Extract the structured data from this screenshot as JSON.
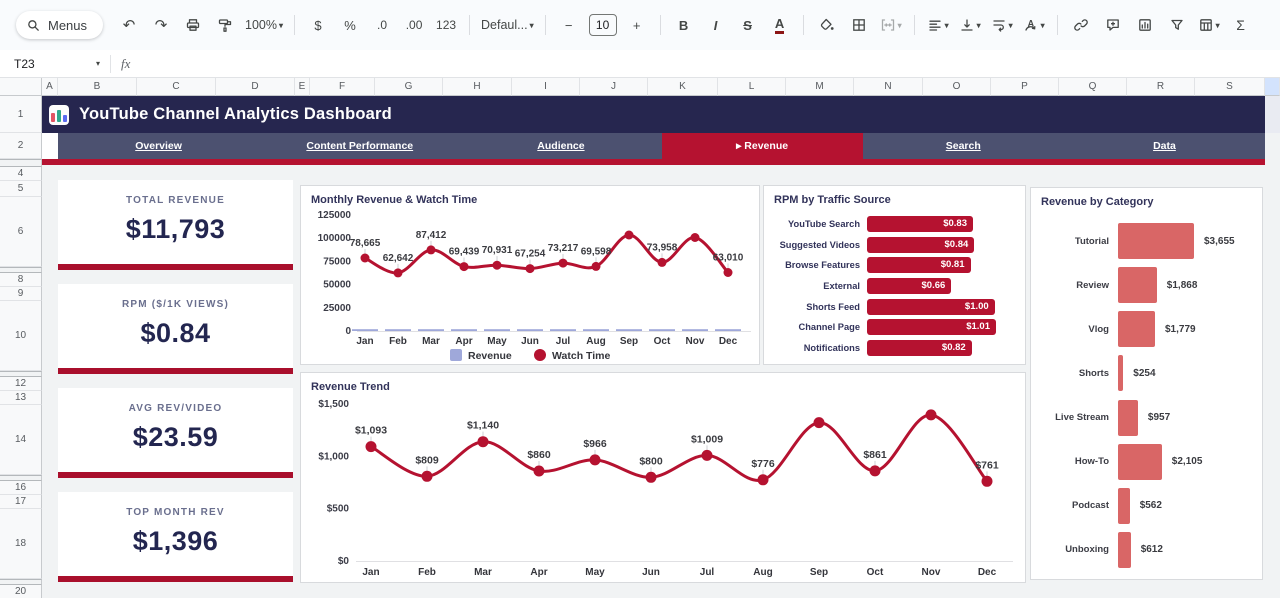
{
  "toolbar": {
    "menus_label": "Menus",
    "zoom_value": "100%",
    "currency": "$",
    "percent": "%",
    "decrease_decimals": ".0",
    "increase_decimals": ".00",
    "more_formats": "123",
    "font_value": "Defaul...",
    "font_size": "10",
    "decrease_size": "−",
    "increase_size": "+",
    "bold": "B",
    "italic": "I",
    "strikethrough": "S",
    "text_color": "A",
    "sum": "Σ",
    "icons": {
      "undo": "↶",
      "redo": "↷",
      "caret": "▾"
    }
  },
  "formula_bar": {
    "name_box": "T23",
    "fx": "fx"
  },
  "spreadsheet": {
    "columns": [
      "A",
      "B",
      "C",
      "D",
      "E",
      "F",
      "G",
      "H",
      "I",
      "J",
      "K",
      "L",
      "M",
      "N",
      "O",
      "P",
      "Q",
      "R",
      "S"
    ],
    "rows": [
      "1",
      "2",
      "4",
      "5",
      "6",
      "8",
      "9",
      "10",
      "12",
      "13",
      "14",
      "16",
      "17",
      "18",
      "20"
    ]
  },
  "header": {
    "title": "YouTube Channel Analytics Dashboard"
  },
  "nav": {
    "active_prefix": "▸",
    "tabs": [
      {
        "label": "Overview",
        "active": false
      },
      {
        "label": "Content Performance",
        "active": false
      },
      {
        "label": "Audience",
        "active": false
      },
      {
        "label": "Revenue",
        "active": true
      },
      {
        "label": "Search",
        "active": false
      },
      {
        "label": "Data",
        "active": false
      }
    ]
  },
  "kpis": [
    {
      "label": "TOTAL REVENUE",
      "value": "$11,793"
    },
    {
      "label": "RPM ($/1K VIEWS)",
      "value": "$0.84"
    },
    {
      "label": "AVG REV/VIDEO",
      "value": "$23.59"
    },
    {
      "label": "TOP MONTH REV",
      "value": "$1,396"
    }
  ],
  "chart_data": [
    {
      "type": "line",
      "title": "Monthly Revenue & Watch Time",
      "categories": [
        "Jan",
        "Feb",
        "Mar",
        "Apr",
        "May",
        "Jun",
        "Jul",
        "Aug",
        "Sep",
        "Oct",
        "Nov",
        "Dec"
      ],
      "series": [
        {
          "name": "Revenue",
          "render": "bar",
          "color": "#9fa8da",
          "values": [
            1093,
            809,
            1140,
            860,
            966,
            800,
            1009,
            776,
            1322,
            861,
            1396,
            761
          ]
        },
        {
          "name": "Watch Time",
          "render": "line",
          "color": "#b51230",
          "values": [
            78665,
            62642,
            87412,
            69439,
            70931,
            67254,
            73217,
            69598,
            103500,
            73958,
            100800,
            63010
          ],
          "labels": [
            "78,665",
            "62,642",
            "87,412",
            "69,439",
            "70,931",
            "67,254",
            "73,217",
            "69,598",
            null,
            "73,958",
            null,
            "63,010"
          ]
        }
      ],
      "ylim": [
        0,
        125000
      ],
      "yticks": [
        "0",
        "25000",
        "50000",
        "75000",
        "100000",
        "125000"
      ],
      "legend_position": "bottom"
    },
    {
      "type": "bar",
      "orientation": "horizontal",
      "title": "RPM by Traffic Source",
      "categories": [
        "YouTube Search",
        "Suggested Videos",
        "Browse Features",
        "External",
        "Shorts Feed",
        "Channel Page",
        "Notifications"
      ],
      "values": [
        0.83,
        0.84,
        0.81,
        0.66,
        1.0,
        1.01,
        0.82
      ],
      "labels": [
        "$0.83",
        "$0.84",
        "$0.81",
        "$0.66",
        "$1.00",
        "$1.01",
        "$0.82"
      ],
      "bar_color": "#b51230"
    },
    {
      "type": "line",
      "title": "Revenue Trend",
      "categories": [
        "Jan",
        "Feb",
        "Mar",
        "Apr",
        "May",
        "Jun",
        "Jul",
        "Aug",
        "Sep",
        "Oct",
        "Nov",
        "Dec"
      ],
      "values": [
        1093,
        809,
        1140,
        860,
        966,
        800,
        1009,
        776,
        1322,
        861,
        1396,
        761
      ],
      "labels": [
        "$1,093",
        "$809",
        "$1,140",
        "$860",
        "$966",
        "$800",
        "$1,009",
        "$776",
        null,
        "$861",
        null,
        "$761"
      ],
      "ylim": [
        0,
        1500
      ],
      "yticks": [
        "$0",
        "$500",
        "$1,000",
        "$1,500"
      ],
      "line_color": "#b51230"
    },
    {
      "type": "bar",
      "orientation": "horizontal",
      "title": "Revenue by Category",
      "categories": [
        "Tutorial",
        "Review",
        "Vlog",
        "Shorts",
        "Live Stream",
        "How-To",
        "Podcast",
        "Unboxing"
      ],
      "values": [
        3655,
        1868,
        1779,
        254,
        957,
        2105,
        562,
        612
      ],
      "labels": [
        "$3,655",
        "$1,868",
        "$1,779",
        "$254",
        "$957",
        "$2,105",
        "$562",
        "$612"
      ],
      "bar_color": "#d96666"
    }
  ],
  "colors": {
    "accent_red": "#b51230",
    "header_navy": "#26264f",
    "nav_slate": "#4c5170",
    "category_salmon": "#d96666",
    "revenue_lavender": "#9fa8da",
    "panel_border": "#d8dadd",
    "content_bg": "#f1f3f4"
  }
}
